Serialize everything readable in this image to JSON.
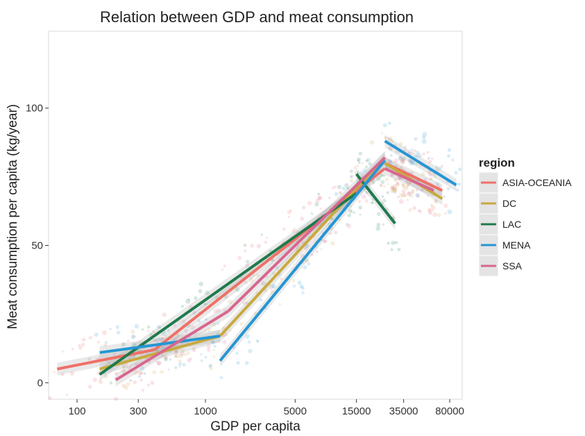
{
  "chart_data": {
    "type": "line",
    "title": "Relation between GDP and meat consumption",
    "xlabel": "GDP per capita",
    "ylabel": "Meat consumption per capita (kg/year)",
    "x_scale": "log",
    "xlim": [
      60,
      100000
    ],
    "ylim": [
      -6,
      128
    ],
    "x_ticks": [
      {
        "value": 100,
        "label": "100"
      },
      {
        "value": 300,
        "label": "300"
      },
      {
        "value": 1000,
        "label": "1000"
      },
      {
        "value": 5000,
        "label": "5000"
      },
      {
        "value": 15000,
        "label": "15000"
      },
      {
        "value": 35000,
        "label": "35000"
      },
      {
        "value": 80000,
        "label": "80000"
      }
    ],
    "y_ticks": [
      {
        "value": 0,
        "label": "0"
      },
      {
        "value": 50,
        "label": "50"
      },
      {
        "value": 100,
        "label": "100"
      }
    ],
    "legend": {
      "title": "region",
      "position": "right"
    },
    "series": [
      {
        "name": "ASIA-OCEANIA",
        "color": "#f07068",
        "segments": [
          [
            [
              70,
              5
            ],
            [
              400,
              12
            ]
          ],
          [
            [
              400,
              12
            ],
            [
              25000,
              78
            ]
          ],
          [
            [
              25000,
              80
            ],
            [
              70000,
              70
            ]
          ]
        ]
      },
      {
        "name": "DC",
        "color": "#c9a93f",
        "segments": [
          [
            [
              150,
              5
            ],
            [
              1300,
              17
            ]
          ],
          [
            [
              1300,
              17
            ],
            [
              25000,
              82
            ]
          ],
          [
            [
              25000,
              80
            ],
            [
              70000,
              67
            ]
          ]
        ]
      },
      {
        "name": "LAC",
        "color": "#1e7a4c",
        "segments": [
          [
            [
              150,
              3
            ],
            [
              15000,
              69
            ]
          ],
          [
            [
              15000,
              76
            ],
            [
              30000,
              58
            ]
          ]
        ]
      },
      {
        "name": "MENA",
        "color": "#2596d4",
        "segments": [
          [
            [
              150,
              11
            ],
            [
              1300,
              17
            ]
          ],
          [
            [
              1300,
              8
            ],
            [
              25000,
              81
            ]
          ],
          [
            [
              25000,
              88
            ],
            [
              90000,
              72
            ]
          ]
        ]
      },
      {
        "name": "SSA",
        "color": "#d9668f",
        "segments": [
          [
            [
              200,
              1
            ],
            [
              1500,
              26
            ]
          ],
          [
            [
              1500,
              26
            ],
            [
              25000,
              82
            ]
          ],
          [
            [
              25000,
              78
            ],
            [
              60000,
              70
            ]
          ]
        ]
      }
    ]
  }
}
